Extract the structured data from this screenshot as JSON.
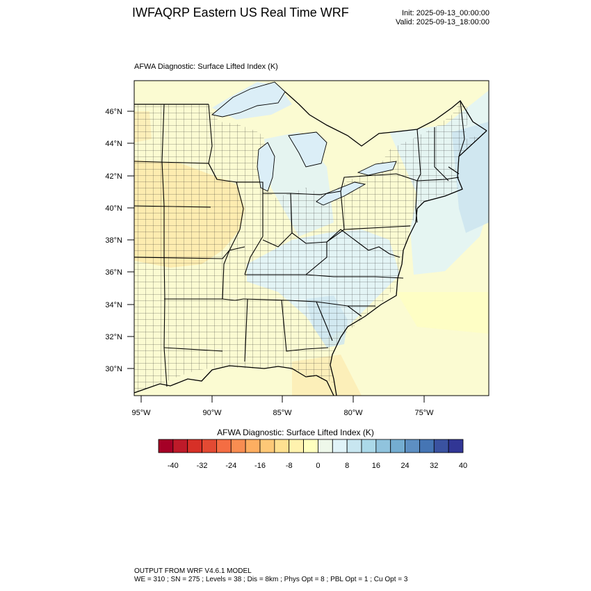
{
  "header": {
    "title": "IWFAQRP Eastern US Real Time WRF",
    "init": "Init: 2025-09-13_00:00:00",
    "valid": "Valid: 2025-09-13_18:00:00"
  },
  "plot": {
    "title": "AFWA Diagnostic: Surface Lifted Index   (K)",
    "lat_labels": [
      "46°N",
      "44°N",
      "42°N",
      "40°N",
      "38°N",
      "36°N",
      "34°N",
      "32°N",
      "30°N"
    ],
    "lon_labels": [
      "95°W",
      "90°W",
      "85°W",
      "80°W",
      "75°W"
    ]
  },
  "colorbar": {
    "title": "AFWA Diagnostic: Surface Lifted Index  (K)",
    "tick_labels": [
      "-40",
      "-32",
      "-24",
      "-16",
      "-8",
      "0",
      "8",
      "16",
      "24",
      "32",
      "40"
    ],
    "colors": [
      "#a50026",
      "#be1a29",
      "#d73027",
      "#e34a33",
      "#f46d43",
      "#f88d51",
      "#fdae61",
      "#fdc877",
      "#fee090",
      "#fff2ae",
      "#ffffbf",
      "#eef8ea",
      "#e0f3f8",
      "#c8e6f0",
      "#abd9e9",
      "#90c3dd",
      "#74add1",
      "#5d8fc2",
      "#4575b4",
      "#3a52a0",
      "#313695"
    ]
  },
  "field_colors": {
    "background": "#fbfbd2",
    "neutral_yellow": "#ffffbf",
    "warm_yellow": "#fee8a8",
    "light_blue": "#e0f3f8",
    "blue": "#cde6f0",
    "water_blue": "#dbeef7"
  },
  "footer": {
    "line1": "OUTPUT FROM WRF V4.6.1 MODEL",
    "line2": "WE = 310 ; SN = 275 ; Levels = 38 ; Dis = 8km ; Phys Opt = 8 ; PBL Opt = 1 ; Cu Opt = 3"
  }
}
